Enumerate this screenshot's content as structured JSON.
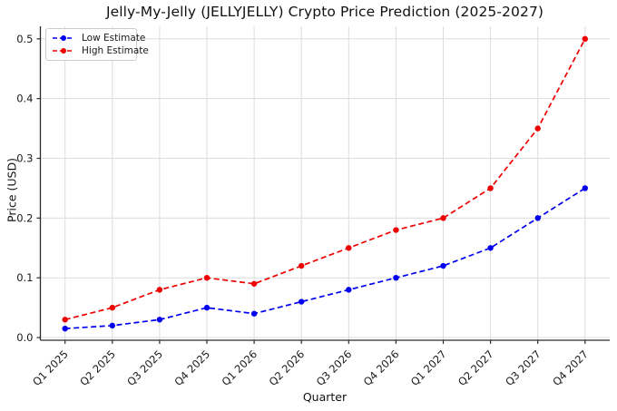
{
  "chart_data": {
    "type": "line",
    "title": "Jelly-My-Jelly (JELLYJELLY) Crypto Price Prediction (2025-2027)",
    "xlabel": "Quarter",
    "ylabel": "Price (USD)",
    "categories": [
      "Q1 2025",
      "Q2 2025",
      "Q3 2025",
      "Q4 2025",
      "Q1 2026",
      "Q2 2026",
      "Q3 2026",
      "Q4 2026",
      "Q1 2027",
      "Q2 2027",
      "Q3 2027",
      "Q4 2027"
    ],
    "series": [
      {
        "name": "Low Estimate",
        "color": "#0000ee",
        "line_style": "dashed",
        "marker": "circle",
        "values": [
          0.015,
          0.02,
          0.03,
          0.05,
          0.04,
          0.06,
          0.08,
          0.1,
          0.12,
          0.15,
          0.2,
          0.25
        ]
      },
      {
        "name": "High Estimate",
        "color": "#ee0000",
        "line_style": "dashed",
        "marker": "circle",
        "values": [
          0.03,
          0.05,
          0.08,
          0.1,
          0.09,
          0.12,
          0.15,
          0.18,
          0.2,
          0.25,
          0.35,
          0.5
        ]
      }
    ],
    "y_ticks": [
      "0.0",
      "0.1",
      "0.2",
      "0.3",
      "0.4",
      "0.5"
    ],
    "y_tick_values": [
      0.0,
      0.1,
      0.2,
      0.3,
      0.4,
      0.5
    ],
    "ylim": [
      -0.0045,
      0.521
    ],
    "grid": "on",
    "grid_color": "#dcdcdc",
    "axis_color": "#2a2a2a",
    "tick_label_color": "#1a1a1a",
    "legend_position": "upper-left",
    "x_tick_rotation_deg": 45
  }
}
